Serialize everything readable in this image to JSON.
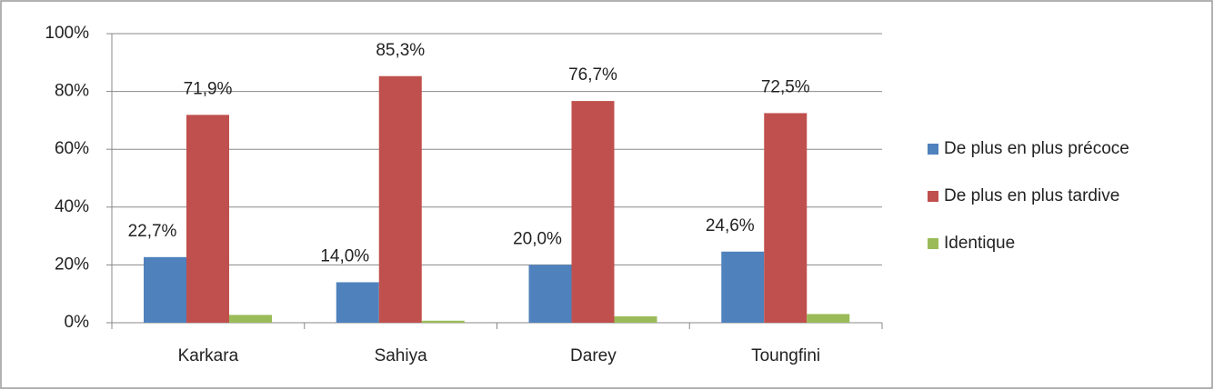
{
  "chart_data": {
    "type": "bar",
    "categories": [
      "Karkara",
      "Sahiya",
      "Darey",
      "Toungfini"
    ],
    "series": [
      {
        "name": "De plus en plus précoce",
        "color": "#4f81bd",
        "values": [
          22.7,
          14.0,
          20.0,
          24.6
        ],
        "value_labels": [
          "22,7%",
          "14,0%",
          "20,0%",
          "24,6%"
        ]
      },
      {
        "name": "De plus en plus tardive",
        "color": "#c0504d",
        "values": [
          71.9,
          85.3,
          76.7,
          72.5
        ],
        "value_labels": [
          "71,9%",
          "85,3%",
          "76,7%",
          "72,5%"
        ]
      },
      {
        "name": "Identique",
        "color": "#9bbb59",
        "values": [
          2.7,
          0.7,
          2.2,
          3.0
        ]
      }
    ],
    "ylim": [
      0,
      100
    ],
    "yticks": [
      {
        "value": 0,
        "label": "0%"
      },
      {
        "value": 20,
        "label": "20%"
      },
      {
        "value": 40,
        "label": "40%"
      },
      {
        "value": 60,
        "label": "60%"
      },
      {
        "value": 80,
        "label": "80%"
      },
      {
        "value": 100,
        "label": "100%"
      }
    ],
    "grid": true,
    "legend": "right"
  }
}
